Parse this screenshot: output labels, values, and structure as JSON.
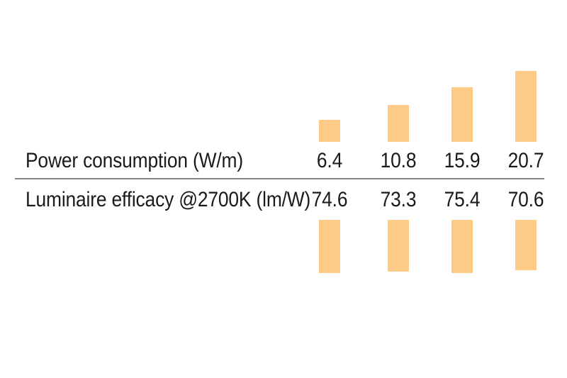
{
  "chart_data": {
    "type": "bar",
    "title": "",
    "rows": [
      {
        "label": "Power consumption (W/m)",
        "values": [
          6.4,
          10.8,
          15.9,
          20.7
        ],
        "unit": "W/m",
        "bar_direction": "up"
      },
      {
        "label": "Luminaire efficacy @2700K (lm/W)",
        "values": [
          74.6,
          73.3,
          75.4,
          70.6
        ],
        "unit": "lm/W",
        "bar_direction": "down"
      }
    ],
    "layout_hints": {
      "legend": "none",
      "grid": false,
      "axes": "none",
      "columns": 4
    },
    "colors": {
      "bar": "#FDCB87",
      "text": "#1a1a1a",
      "divider": "#868686",
      "background": "#ffffff"
    }
  }
}
